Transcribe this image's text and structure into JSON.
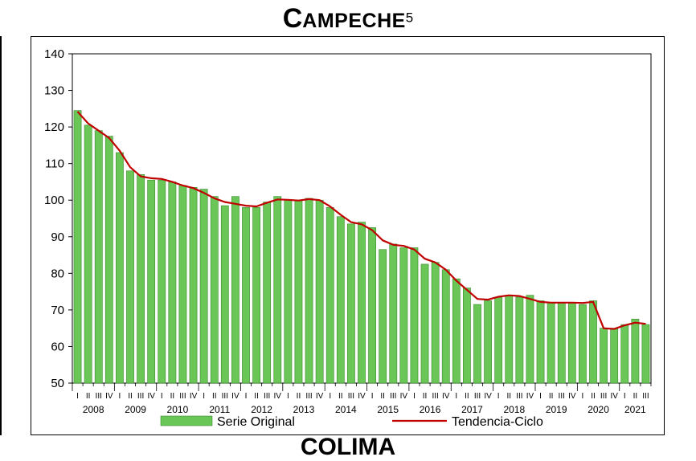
{
  "title": {
    "initial": "C",
    "rest": "AMPECHE",
    "superscript": "5"
  },
  "next_title": "COLIMA",
  "chart_data": {
    "type": "bar",
    "ylim": [
      50,
      140
    ],
    "yticks": [
      50,
      60,
      70,
      80,
      90,
      100,
      110,
      120,
      130,
      140
    ],
    "years": [
      "2008",
      "2009",
      "2010",
      "2011",
      "2012",
      "2013",
      "2014",
      "2015",
      "2016",
      "2017",
      "2018",
      "2019",
      "2020",
      "2021"
    ],
    "quarter_labels": [
      "I",
      "II",
      "III",
      "IV"
    ],
    "legend": {
      "position": "bottom"
    },
    "grid": false,
    "series": [
      {
        "name": "Serie Original",
        "type": "bar",
        "color": "#6ac656",
        "values": [
          124.5,
          120.5,
          119,
          117.5,
          113,
          108,
          107,
          105.5,
          105.5,
          105,
          104,
          103.5,
          103,
          101,
          98.5,
          101,
          98,
          98,
          99.5,
          101,
          100,
          100,
          100.5,
          100,
          98,
          95.5,
          93.5,
          94,
          92.5,
          86.5,
          88,
          87,
          87,
          82.5,
          83,
          81,
          78.5,
          76,
          71.5,
          72.5,
          73.5,
          74,
          73.5,
          74,
          72.5,
          72,
          72,
          72,
          71.5,
          72.5,
          65,
          65,
          66,
          67.5,
          66
        ]
      },
      {
        "name": "Tendencia-Ciclo",
        "type": "line",
        "color": "#c00000",
        "values": [
          124.2,
          121,
          119,
          117,
          113.5,
          109,
          106.5,
          106,
          105.8,
          105,
          104,
          103.3,
          102,
          100.5,
          99.5,
          99,
          98.5,
          98.3,
          99.3,
          100.2,
          100.1,
          99.9,
          100.3,
          100,
          98.3,
          96,
          94,
          93.4,
          91.8,
          89,
          87.8,
          87.5,
          86.5,
          84,
          83,
          81,
          78,
          75.5,
          73,
          72.8,
          73.6,
          74,
          73.8,
          73,
          72.2,
          72,
          72,
          72,
          71.9,
          72.2,
          65,
          64.8,
          65.8,
          66.5,
          66.2
        ]
      }
    ]
  }
}
